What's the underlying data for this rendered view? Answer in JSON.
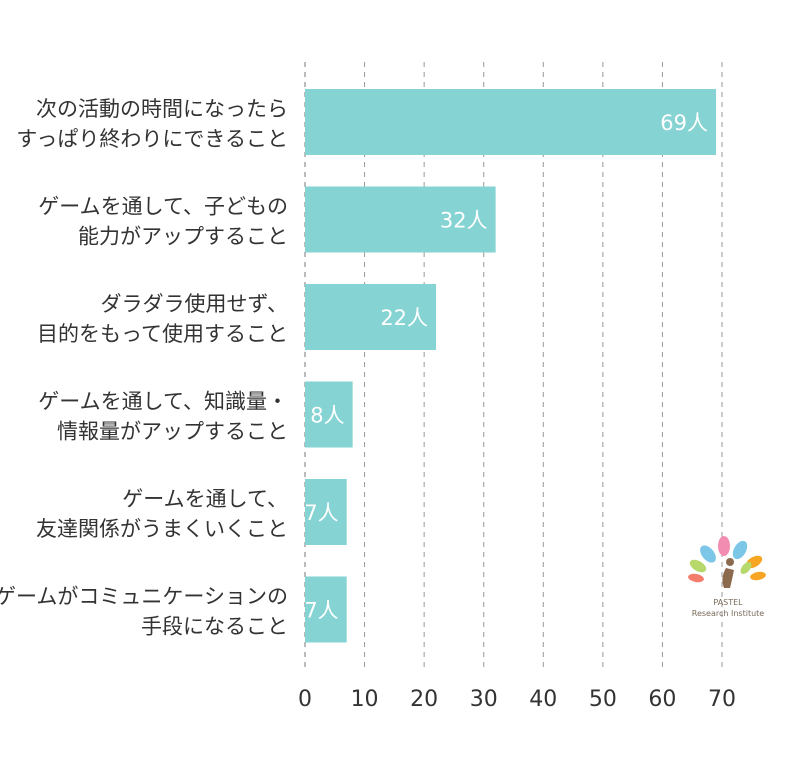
{
  "chart_data": {
    "type": "bar",
    "orientation": "horizontal",
    "categories": [
      [
        "次の活動の時間になったら",
        "すっぱり終わりにできること"
      ],
      [
        "ゲームを通して、子どもの",
        "能力がアップすること"
      ],
      [
        "ダラダラ使用せず、",
        "目的をもって使用すること"
      ],
      [
        "ゲームを通して、知識量・",
        "情報量がアップすること"
      ],
      [
        "ゲームを通して、",
        "友達関係がうまくいくこと"
      ],
      [
        "ゲームがコミュニケーションの",
        "手段になること"
      ]
    ],
    "values": [
      69,
      32,
      22,
      8,
      7,
      7
    ],
    "value_labels": [
      "69人",
      "32人",
      "22人",
      "8人",
      "7人",
      "7人"
    ],
    "xlim": [
      0,
      70
    ],
    "xticks": [
      0,
      10,
      20,
      30,
      40,
      50,
      60,
      70
    ],
    "grid": true,
    "bar_color": "#86d3d3",
    "title": "",
    "xlabel": "",
    "ylabel": ""
  },
  "logo": {
    "line1": "PASTEL",
    "line2": "Research Institute",
    "colors": [
      "#f28cb1",
      "#f6a623",
      "#7cc7e8",
      "#b7d86b",
      "#f47c6b",
      "#8b6a4e"
    ]
  }
}
